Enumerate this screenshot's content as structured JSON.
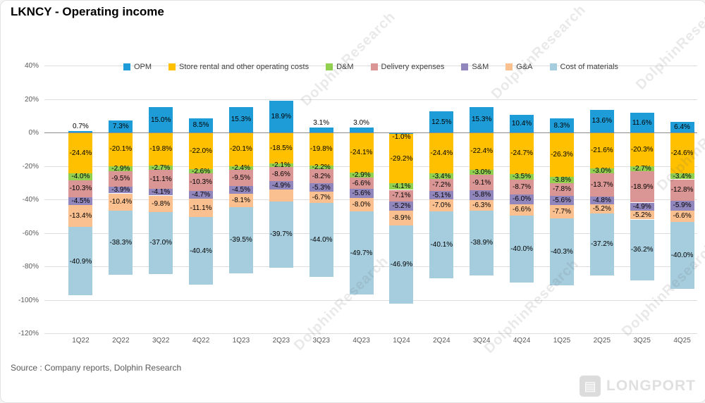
{
  "title": "LKNCY - Operating income",
  "source": "Source : Company reports, Dolphin Research",
  "watermark": {
    "text": "DolphinResearch",
    "brand": "LONGPORT"
  },
  "chart_data": {
    "type": "bar",
    "stacked": true,
    "title": "LKNCY - Operating income",
    "legend_position": "top",
    "categories": [
      "1Q22",
      "2Q22",
      "3Q22",
      "4Q22",
      "1Q23",
      "2Q23",
      "3Q23",
      "4Q23",
      "1Q24",
      "2Q24",
      "3Q24",
      "4Q24",
      "1Q25",
      "2Q25",
      "3Q25",
      "4Q25"
    ],
    "y_axis": {
      "min": -120,
      "max": 40,
      "step": 20,
      "grid": true,
      "unit": "%",
      "tick_values": [
        40,
        20,
        0,
        -20,
        -40,
        -60,
        -80,
        -100,
        -120
      ],
      "tick_labels": [
        "40%",
        "20%",
        "0%",
        "-20%",
        "-40%",
        "-60%",
        "-80%",
        "-100%",
        "-120%"
      ]
    },
    "series": [
      {
        "key": "opm",
        "name": "OPM",
        "color": "#1E9CD7",
        "values": [
          0.7,
          7.3,
          15.0,
          8.5,
          15.3,
          18.9,
          3.1,
          3.0,
          -1.0,
          12.5,
          15.3,
          10.4,
          8.3,
          13.6,
          11.6,
          6.4
        ],
        "labels": [
          "0.7%",
          "7.3%",
          "15.0%",
          "8.5%",
          "15.3%",
          "18.9%",
          "3.1%",
          "3.0%",
          "-1.0%",
          "12.5%",
          "15.3%",
          "10.4%",
          "8.3%",
          "13.6%",
          "11.6%",
          "6.4%"
        ]
      },
      {
        "key": "store-rental",
        "name": "Store rental and other operating costs",
        "color": "#FFC000",
        "values": [
          -24.4,
          -20.1,
          -19.8,
          -22.0,
          -20.1,
          -18.5,
          -19.8,
          -24.1,
          -29.2,
          -24.4,
          -22.4,
          -24.7,
          -26.3,
          -21.6,
          -20.3,
          -24.6
        ],
        "labels": [
          "-24.4%",
          "-20.1%",
          "-19.8%",
          "-22.0%",
          "-20.1%",
          "-18.5%",
          "-19.8%",
          "-24.1%",
          "-29.2%",
          "-24.4%",
          "-22.4%",
          "-24.7%",
          "-26.3%",
          "-21.6%",
          "-20.3%",
          "-24.6%"
        ]
      },
      {
        "key": "dm",
        "name": "D&M",
        "color": "#92D050",
        "values": [
          -4.0,
          -2.9,
          -2.7,
          -2.6,
          -2.4,
          -2.1,
          -2.2,
          -2.9,
          -4.1,
          -3.4,
          -3.0,
          -3.5,
          -3.8,
          -3.0,
          -2.7,
          -3.4
        ],
        "labels": [
          "-4.0%",
          "-2.9%",
          "-2.7%",
          "-2.6%",
          "-2.4%",
          "-2.1%",
          "-2.2%",
          "-2.9%",
          "-4.1%",
          "-3.4%",
          "-3.0%",
          "-3.5%",
          "-3.8%",
          "-3.0%",
          "-2.7%",
          "-3.4%"
        ]
      },
      {
        "key": "delivery",
        "name": "Delivery expenses",
        "color": "#D99694",
        "values": [
          -10.3,
          -9.5,
          -11.1,
          -10.3,
          -9.5,
          -8.6,
          -8.2,
          -6.6,
          -7.1,
          -7.2,
          -9.1,
          -8.7,
          -7.8,
          -13.7,
          -18.9,
          -12.8
        ],
        "labels": [
          "-10.3%",
          "-9.5%",
          "-11.1%",
          "-10.3%",
          "-9.5%",
          "-8.6%",
          "-8.2%",
          "-6.6%",
          "-7.1%",
          "-7.2%",
          "-9.1%",
          "-8.7%",
          "-7.8%",
          "-13.7%",
          "-18.9%",
          "-12.8%"
        ]
      },
      {
        "key": "sm",
        "name": "S&M",
        "color": "#9287BD",
        "values": [
          -4.5,
          -3.9,
          -4.1,
          -4.7,
          -4.5,
          -4.9,
          -5.3,
          -5.6,
          -5.2,
          -5.1,
          -5.8,
          -6.0,
          -5.6,
          -4.8,
          -4.9,
          -5.9
        ],
        "labels": [
          "-4.5%",
          "-3.9%",
          "-4.1%",
          "-4.7%",
          "-4.5%",
          "-4.9%",
          "-5.3%",
          "-5.6%",
          "-5.2%",
          "-5.1%",
          "-5.8%",
          "-6.0%",
          "-5.6%",
          "-4.8%",
          "-4.9%",
          "-5.9%"
        ]
      },
      {
        "key": "ga",
        "name": "G&A",
        "color": "#FAC090",
        "values": [
          -13.4,
          -10.4,
          -9.8,
          -11.1,
          -8.1,
          -7.0,
          -6.7,
          -8.0,
          -8.9,
          -7.0,
          -6.3,
          -6.6,
          -7.7,
          -5.2,
          -5.2,
          -6.6
        ],
        "labels": [
          "-13.4%",
          "-10.4%",
          "-9.8%",
          "-11.1%",
          "-8.1%",
          "",
          "-6.7%",
          "-8.0%",
          "-8.9%",
          "-7.0%",
          "-6.3%",
          "-6.6%",
          "-7.7%",
          "-5.2%",
          "-5.2%",
          "-6.6%"
        ]
      },
      {
        "key": "materials",
        "name": "Cost of materials",
        "color": "#A5CDDE",
        "values": [
          -40.9,
          -38.3,
          -37.0,
          -40.4,
          -39.5,
          -39.7,
          -44.0,
          -49.7,
          -46.9,
          -40.1,
          -38.9,
          -40.0,
          -40.3,
          -37.2,
          -36.2,
          -40.0
        ],
        "labels": [
          "-40.9%",
          "-38.3%",
          "-37.0%",
          "-40.4%",
          "-39.5%",
          "-39.7%",
          "-44.0%",
          "-49.7%",
          "-46.9%",
          "-40.1%",
          "-38.9%",
          "-40.0%",
          "-40.3%",
          "-37.2%",
          "-36.2%",
          "-40.0%"
        ]
      }
    ]
  }
}
